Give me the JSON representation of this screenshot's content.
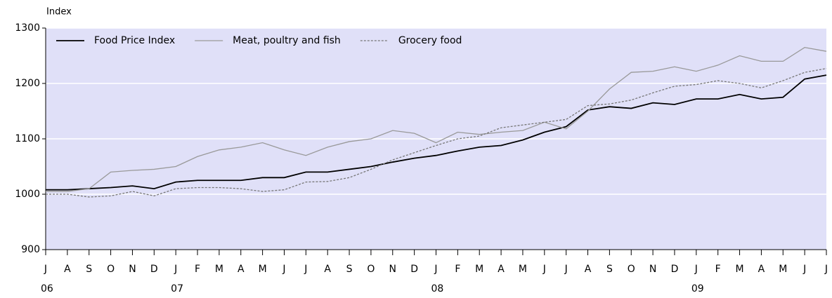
{
  "chart_data": {
    "type": "line",
    "y_label": "Index",
    "categories": [
      "J",
      "A",
      "S",
      "O",
      "N",
      "D",
      "J",
      "F",
      "M",
      "A",
      "M",
      "J",
      "J",
      "A",
      "S",
      "O",
      "N",
      "D",
      "J",
      "F",
      "M",
      "A",
      "M",
      "J",
      "J",
      "A",
      "S",
      "O",
      "N",
      "D",
      "J",
      "F",
      "M",
      "A",
      "M",
      "J",
      "J"
    ],
    "year_labels": [
      "06",
      null,
      null,
      null,
      null,
      null,
      "07",
      null,
      null,
      null,
      null,
      null,
      null,
      null,
      null,
      null,
      null,
      null,
      "08",
      null,
      null,
      null,
      null,
      null,
      null,
      null,
      null,
      null,
      null,
      null,
      "09",
      null,
      null,
      null,
      null,
      null,
      null
    ],
    "ylim": [
      900,
      1300
    ],
    "yticks": [
      900,
      1000,
      1100,
      1200,
      1300
    ],
    "grid": true,
    "legend": "top-left",
    "series": [
      {
        "name": "Food Price Index",
        "color": "#000000",
        "style": "solid",
        "values": [
          1008,
          1008,
          1010,
          1012,
          1015,
          1010,
          1022,
          1025,
          1025,
          1025,
          1030,
          1030,
          1040,
          1040,
          1045,
          1050,
          1058,
          1065,
          1070,
          1078,
          1085,
          1088,
          1098,
          1112,
          1122,
          1152,
          1158,
          1155,
          1165,
          1162,
          1172,
          1172,
          1180,
          1172,
          1175,
          1208,
          1215
        ]
      },
      {
        "name": "Meat, poultry and fish",
        "color": "#999999",
        "style": "solid",
        "values": [
          1005,
          1005,
          1010,
          1040,
          1043,
          1045,
          1050,
          1068,
          1080,
          1085,
          1093,
          1080,
          1070,
          1085,
          1095,
          1100,
          1115,
          1110,
          1093,
          1112,
          1108,
          1112,
          1115,
          1130,
          1118,
          1150,
          1190,
          1220,
          1222,
          1230,
          1222,
          1233,
          1250,
          1240,
          1240,
          1265,
          1258
        ]
      },
      {
        "name": "Grocery food",
        "color": "#777777",
        "style": "dotted",
        "values": [
          1000,
          1000,
          995,
          997,
          1005,
          997,
          1010,
          1012,
          1012,
          1010,
          1005,
          1008,
          1022,
          1023,
          1030,
          1045,
          1062,
          1075,
          1088,
          1100,
          1105,
          1120,
          1125,
          1130,
          1135,
          1160,
          1163,
          1170,
          1183,
          1195,
          1198,
          1205,
          1200,
          1192,
          1205,
          1220,
          1227
        ]
      }
    ]
  }
}
